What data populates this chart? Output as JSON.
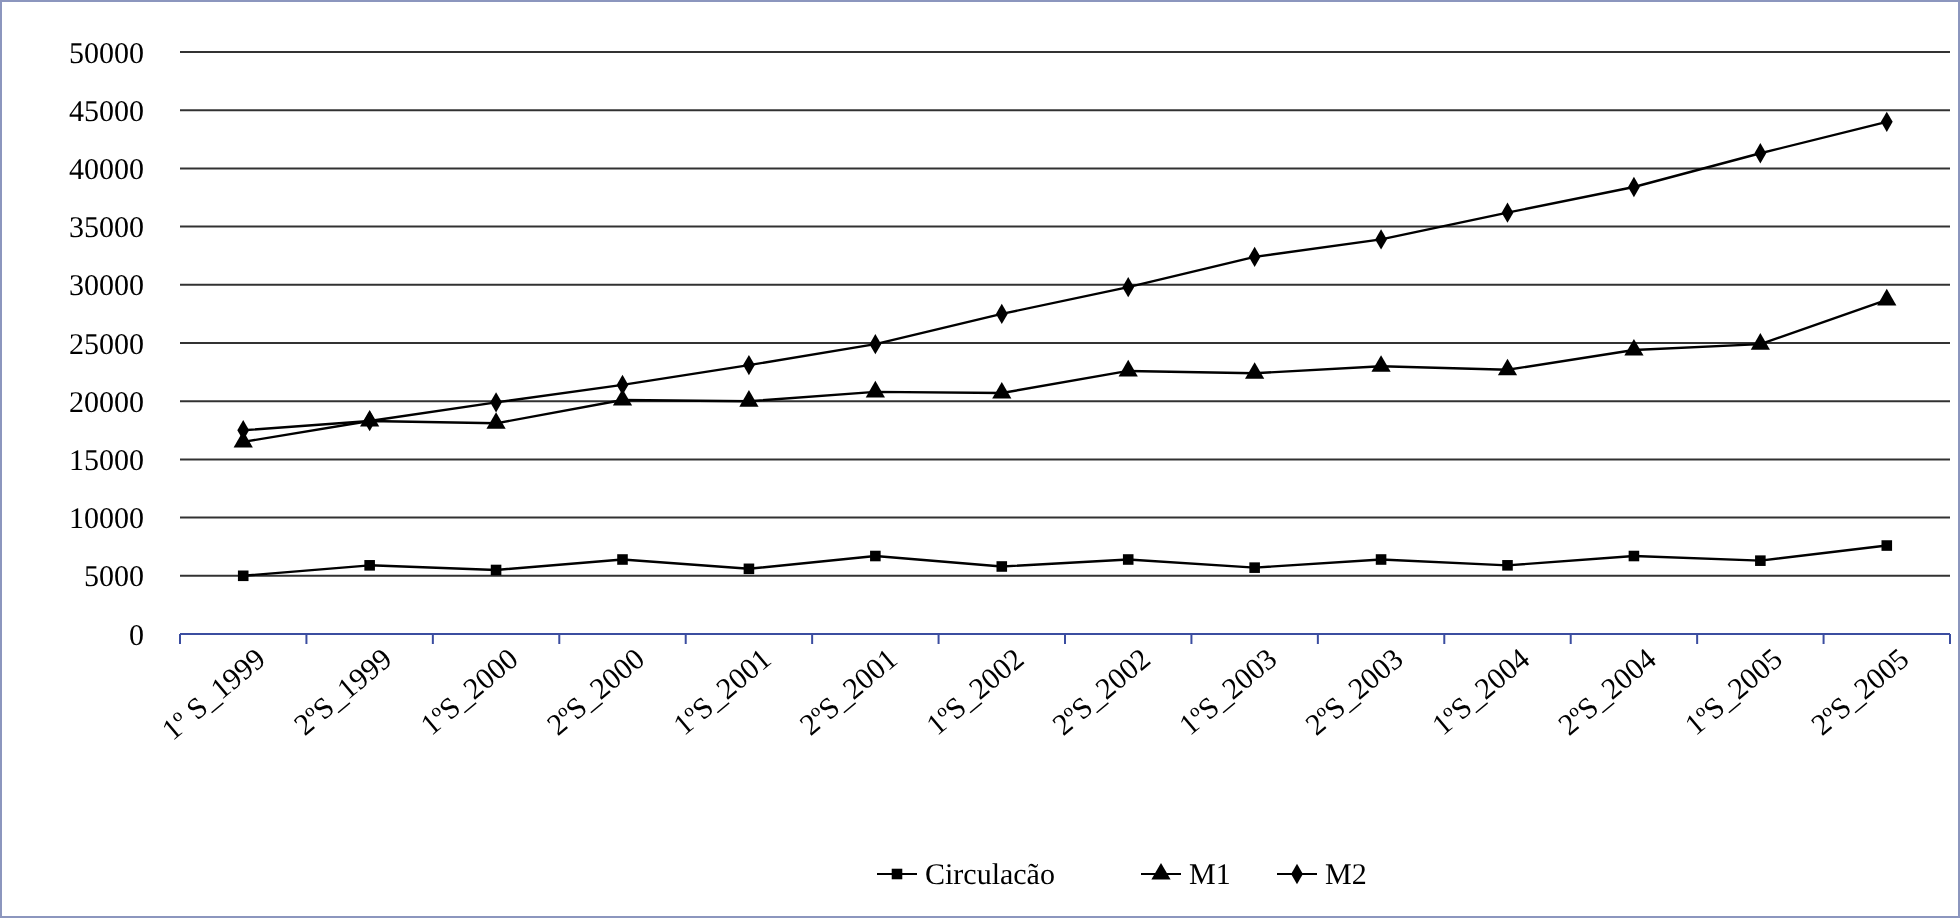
{
  "chart_data": {
    "type": "line",
    "categories": [
      "1º S_1999",
      "2ºS_1999",
      "1ºS_2000",
      "2ºS_2000",
      "1ºS_2001",
      "2ºS_2001",
      "1ºS_2002",
      "2ºS_2002",
      "1ºS_2003",
      "2ºS_2003",
      "1ºS_2004",
      "2ºS_2004",
      "1ºS_2005",
      "2ºS_2005"
    ],
    "series": [
      {
        "name": "Circulacão",
        "color": "#000000",
        "marker": "square",
        "values": [
          5000,
          5900,
          5500,
          6400,
          5600,
          6700,
          5800,
          6400,
          5700,
          6400,
          5900,
          6700,
          6300,
          7600
        ]
      },
      {
        "name": "M1",
        "color": "#000000",
        "marker": "triangle",
        "values": [
          16500,
          18300,
          18100,
          20100,
          20000,
          20800,
          20700,
          22600,
          22400,
          23000,
          22700,
          24400,
          24900,
          28700
        ]
      },
      {
        "name": "M2",
        "color": "#000000",
        "marker": "diamond",
        "values": [
          17500,
          18300,
          19900,
          21400,
          23100,
          24900,
          27500,
          29800,
          32400,
          33900,
          36200,
          38400,
          41300,
          44000
        ]
      }
    ],
    "ylim": [
      0,
      50000
    ],
    "yticks": [
      0,
      5000,
      10000,
      15000,
      20000,
      25000,
      30000,
      35000,
      40000,
      45000,
      50000
    ],
    "grid": "y",
    "legend": "bottom",
    "line_style": "solid"
  }
}
